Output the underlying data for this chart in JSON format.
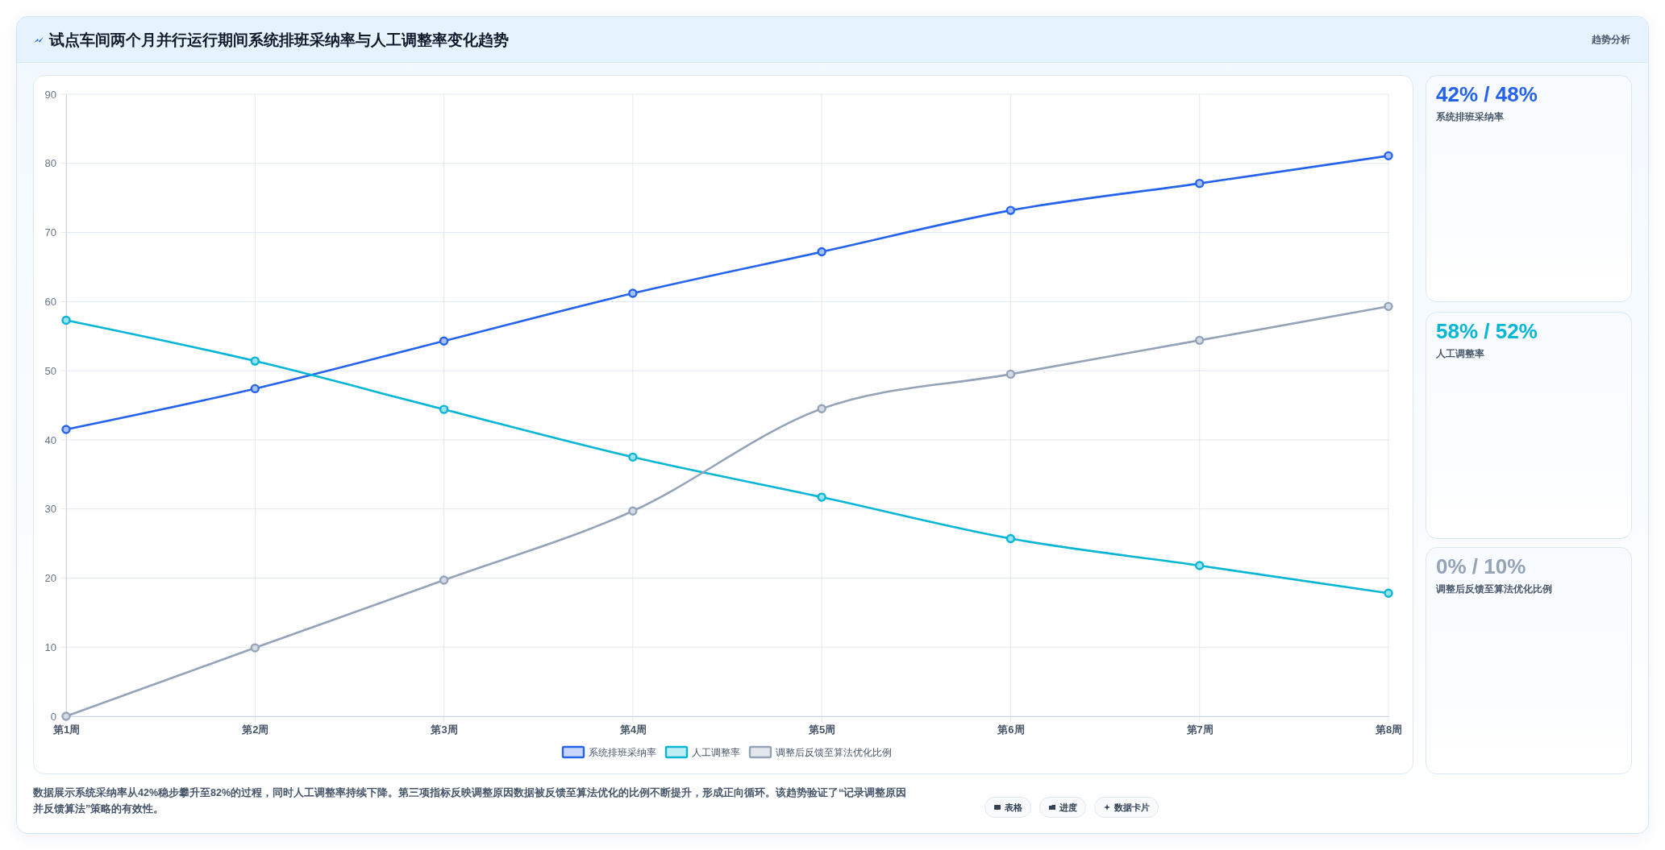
{
  "chart_data": [
    {
      "type": "line",
      "title": "试点车间两个月并行运行期间系统排班采纳率与人工调整率变化趋势",
      "categories": [
        "第1周",
        "第2周",
        "第3周",
        "第4周",
        "第5周",
        "第6周",
        "第7周",
        "第8周"
      ],
      "series": [
        {
          "name": "系统排班采纳率",
          "color": "#2563eb",
          "values": [
            41.5,
            47.4,
            54.3,
            61.2,
            67.2,
            73.2,
            77.1,
            81.1
          ]
        },
        {
          "name": "人工调整率",
          "color": "#06b6d4",
          "values": [
            57.3,
            51.4,
            44.4,
            37.5,
            31.7,
            25.7,
            21.8,
            17.8
          ]
        },
        {
          "name": "调整后反馈至算法优化比例",
          "color": "#94a3b8",
          "values": [
            0,
            9.9,
            19.7,
            29.7,
            44.5,
            49.5,
            54.4,
            59.3
          ]
        }
      ],
      "ylim": [
        0,
        90
      ],
      "yticks": [
        0,
        10,
        20,
        30,
        40,
        50,
        60,
        70,
        80,
        90
      ],
      "grid": true,
      "legend": "bottom",
      "marker": "circle",
      "annotations": [
        "趋势分析",
        "数据展示系统采纳率从42%稳步攀升至82%的过程，同时人工调整率持续下降。第三项指标反映调整原因数据被反馈至算法优化的比例不断提升，形成正向循环。该趋势验证了“记录调整原因并反馈算法”策略的有效性。",
        "表格",
        "进度",
        "数据卡片"
      ]
    },
    {
      "type": "other",
      "title": "42% / 48%",
      "subtitle": "系统排班采纳率",
      "color": "#2563eb"
    },
    {
      "type": "other",
      "title": "58% / 52%",
      "subtitle": "人工调整率",
      "color": "#06b6d4"
    },
    {
      "type": "other",
      "title": "0% / 10%",
      "subtitle": "调整后反馈至算法优化比例",
      "color": "#94a3b8"
    }
  ]
}
